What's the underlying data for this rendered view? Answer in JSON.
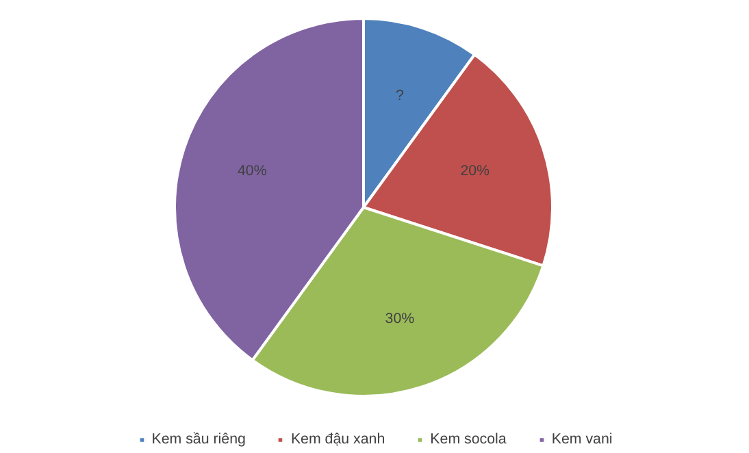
{
  "chart_data": {
    "type": "pie",
    "categories": [
      "Kem sầu riêng",
      "Kem đậu xanh",
      "Kem socola",
      "Kem vani"
    ],
    "values": [
      10,
      20,
      30,
      40
    ],
    "colors": [
      "#4f81bd",
      "#c0504d",
      "#9bbb59",
      "#8064a2"
    ],
    "value_labels": [
      "?",
      "20%",
      "30%",
      "40%"
    ],
    "legend": "bottom"
  }
}
